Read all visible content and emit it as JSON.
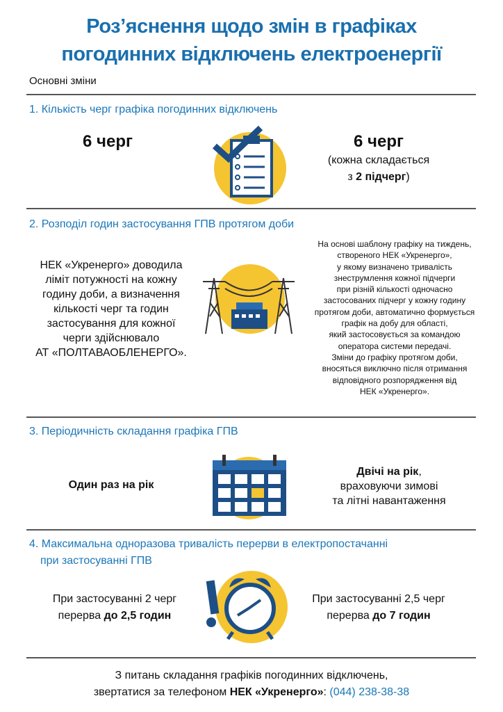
{
  "title": {
    "line1": "Роз’яснення щодо змін в графіках",
    "line2": "погодинних відключень електроенергії"
  },
  "subtitle": "Основні зміни",
  "colors": {
    "accent_blue": "#1a6fae",
    "yellow": "#f5c431",
    "dark_blue": "#1d4f86"
  },
  "sections": [
    {
      "heading": "1. Кількість черг графіка погодинних відключень",
      "icon": "clipboard-checklist-icon",
      "left": "6 черг",
      "right": {
        "main": "6 черг",
        "line2": "(кожна складається",
        "line3_pre": "з ",
        "line3_bold": "2 підчерг",
        "line3_post": ")"
      }
    },
    {
      "heading": "2.  Розподіл годин застосування ГПВ протягом доби",
      "icon": "power-lines-substation-icon",
      "left": [
        "НЕК «Укренерго» доводила",
        "ліміт потужності на кожну",
        "годину доби, а визначення",
        "кількості черг та годин",
        "застосування  для кожної",
        "черги здійснювало",
        "АТ «ПОЛТАВАОБЛЕНЕРГО»."
      ],
      "right": [
        "На основі шаблону графіку на тиждень,",
        "створеного НЕК «Укренерго»,",
        "у якому визначено тривалість",
        "знеструмлення кожної підчерги",
        "при різній кількості одночасно",
        "застосованих підчерг у кожну годину",
        "протягом доби, автоматично формується",
        "графік на добу для області,",
        "який застосовується за командою",
        "оператора системи передачі.",
        "Зміни до графіку протягом доби,",
        "вносяться виключно після отримання",
        "відповідного розпорядження від",
        "НЕК «Укренерго»."
      ]
    },
    {
      "heading": "3. Періодичність складання графіка ГПВ",
      "icon": "calendar-icon",
      "left": "Один раз на рік",
      "right": {
        "bold": "Двічі на рік",
        "bold_suffix": ",",
        "line2": "враховуючи зимові",
        "line3": "та літні навантаження"
      }
    },
    {
      "heading": "4. Максимальна одноразова тривалість перерви в електропостачанні",
      "heading2": "при застосуванні ГПВ",
      "icon": "alarm-clock-icon",
      "left": {
        "line1": "При застосуванні 2 черг",
        "line2_pre": "перерва ",
        "line2_bold": "до 2,5 годин"
      },
      "right": {
        "line1": "При застосуванні 2,5 черг",
        "line2_pre": "перерва ",
        "line2_bold": "до 7 годин"
      }
    }
  ],
  "footer": {
    "line1": "З питань складання графіків погодинних відключень,",
    "line2_pre": "звертатися за телефоном ",
    "line2_bold": "НЕК «Укренерго»",
    "line2_sep": ": ",
    "phone": "(044) 238-38-38"
  }
}
